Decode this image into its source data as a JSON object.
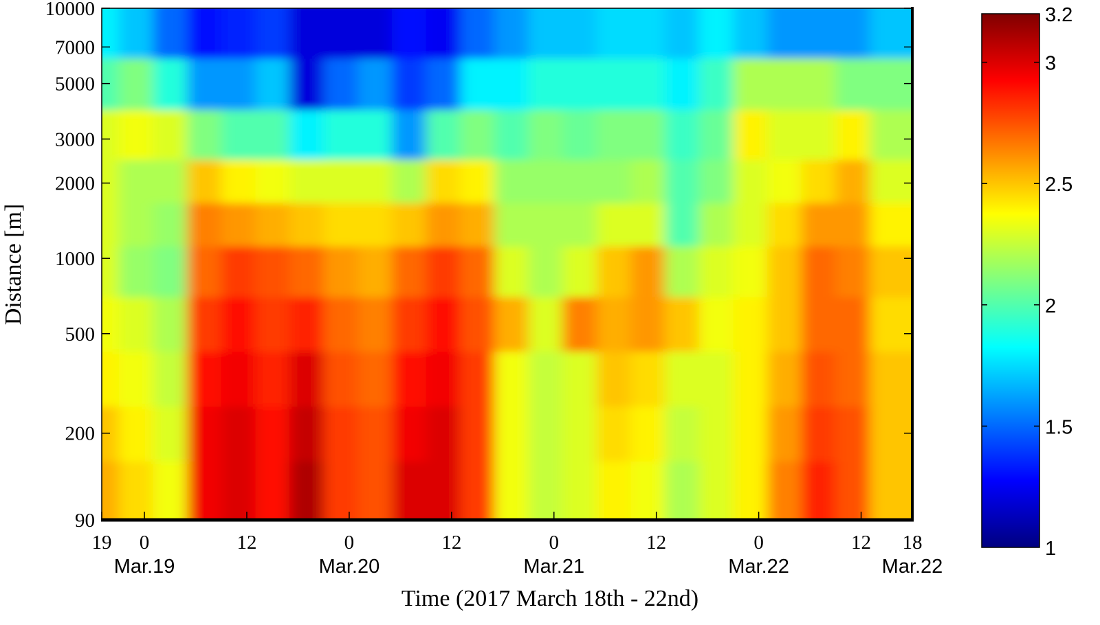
{
  "chart_data": {
    "type": "heatmap",
    "title": "",
    "xlabel": "Time (2017 March 18th - 22nd)",
    "ylabel": "Distance [m]",
    "x_unit": "hours since Mar.18 19:00",
    "xlim": [
      0,
      95
    ],
    "ylim": [
      90,
      10000
    ],
    "yscale": "log",
    "x_ticks": [
      {
        "hour": 0,
        "label": "19"
      },
      {
        "hour": 5,
        "label": "0",
        "date": "Mar.19"
      },
      {
        "hour": 17,
        "label": "12"
      },
      {
        "hour": 29,
        "label": "0",
        "date": "Mar.20"
      },
      {
        "hour": 41,
        "label": "12"
      },
      {
        "hour": 53,
        "label": "0",
        "date": "Mar.21"
      },
      {
        "hour": 65,
        "label": "12"
      },
      {
        "hour": 77,
        "label": "0",
        "date": "Mar.22"
      },
      {
        "hour": 89,
        "label": "12"
      },
      {
        "hour": 95,
        "label": "18",
        "date": "Mar.22"
      }
    ],
    "y_ticks": [
      90,
      200,
      500,
      1000,
      2000,
      3000,
      5000,
      7000,
      10000
    ],
    "colorbar": {
      "min": 1,
      "max": 3.2,
      "colormap": "jet",
      "ticks": [
        "1",
        "1.5",
        "2",
        "2.5",
        "3",
        "3.2"
      ]
    },
    "distances": [
      120,
      200,
      330,
      550,
      900,
      1400,
      2000,
      3100,
      5000,
      8000
    ],
    "times": [
      0,
      4,
      8,
      12,
      16,
      20,
      24,
      28,
      32,
      36,
      40,
      44,
      48,
      52,
      56,
      60,
      64,
      68,
      72,
      76,
      80,
      84,
      88,
      92
    ],
    "values": [
      [
        2.55,
        2.5,
        2.4,
        2.35,
        2.3,
        2.3,
        2.3,
        2.3,
        2.0,
        1.8
      ],
      [
        2.45,
        2.4,
        2.35,
        2.3,
        2.15,
        2.2,
        2.2,
        2.35,
        2.1,
        1.7
      ],
      [
        2.35,
        2.3,
        2.25,
        2.2,
        2.1,
        2.15,
        2.2,
        2.3,
        1.9,
        1.5
      ],
      [
        2.95,
        2.95,
        2.9,
        2.8,
        2.7,
        2.65,
        2.5,
        2.1,
        1.6,
        1.3
      ],
      [
        3.0,
        3.0,
        2.95,
        2.9,
        2.8,
        2.6,
        2.4,
        2.0,
        1.6,
        1.35
      ],
      [
        2.9,
        2.9,
        2.85,
        2.8,
        2.75,
        2.55,
        2.35,
        2.0,
        1.7,
        1.4
      ],
      [
        3.1,
        3.05,
        3.0,
        2.85,
        2.7,
        2.5,
        2.3,
        1.8,
        1.2,
        1.2
      ],
      [
        2.8,
        2.8,
        2.75,
        2.7,
        2.6,
        2.45,
        2.3,
        1.9,
        1.5,
        1.2
      ],
      [
        2.75,
        2.75,
        2.7,
        2.65,
        2.55,
        2.45,
        2.3,
        1.9,
        1.6,
        1.2
      ],
      [
        3.0,
        2.95,
        2.9,
        2.8,
        2.7,
        2.5,
        2.2,
        1.6,
        1.4,
        1.3
      ],
      [
        3.0,
        3.0,
        2.95,
        2.9,
        2.8,
        2.6,
        2.45,
        2.0,
        1.5,
        1.25
      ],
      [
        2.8,
        2.8,
        2.8,
        2.75,
        2.7,
        2.55,
        2.4,
        2.1,
        1.8,
        1.5
      ],
      [
        2.35,
        2.35,
        2.35,
        2.55,
        2.3,
        2.2,
        2.15,
        2.0,
        1.8,
        1.6
      ],
      [
        2.25,
        2.25,
        2.25,
        2.3,
        2.2,
        2.2,
        2.15,
        2.1,
        1.9,
        1.7
      ],
      [
        2.3,
        2.3,
        2.3,
        2.65,
        2.3,
        2.2,
        2.15,
        2.05,
        1.9,
        1.7
      ],
      [
        2.4,
        2.45,
        2.5,
        2.55,
        2.5,
        2.3,
        2.15,
        2.1,
        1.9,
        1.75
      ],
      [
        2.35,
        2.4,
        2.45,
        2.6,
        2.6,
        2.3,
        2.2,
        2.1,
        1.9,
        1.75
      ],
      [
        2.2,
        2.25,
        2.3,
        2.5,
        2.2,
        2.0,
        2.0,
        1.95,
        1.8,
        1.7
      ],
      [
        2.3,
        2.3,
        2.3,
        2.35,
        2.3,
        2.2,
        2.1,
        2.05,
        1.95,
        1.8
      ],
      [
        2.4,
        2.4,
        2.4,
        2.4,
        2.35,
        2.3,
        2.3,
        2.4,
        2.2,
        1.7
      ],
      [
        2.65,
        2.6,
        2.55,
        2.5,
        2.5,
        2.45,
        2.35,
        2.3,
        2.2,
        1.6
      ],
      [
        2.85,
        2.8,
        2.75,
        2.7,
        2.7,
        2.6,
        2.45,
        2.3,
        2.2,
        1.6
      ],
      [
        2.75,
        2.75,
        2.7,
        2.7,
        2.65,
        2.6,
        2.55,
        2.4,
        2.1,
        1.6
      ],
      [
        2.5,
        2.5,
        2.5,
        2.45,
        2.5,
        2.4,
        2.3,
        2.2,
        2.1,
        1.7
      ]
    ]
  }
}
